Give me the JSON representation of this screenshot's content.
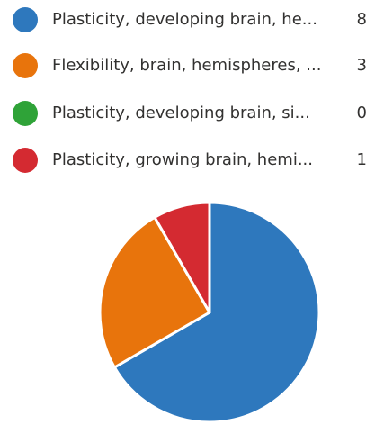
{
  "chart_data": {
    "type": "pie",
    "categories": [
      "Plasticity, developing brain, he...",
      "Flexibility, brain, hemispheres, ...",
      "Plasticity, developing brain, si...",
      "Plasticity, growing brain, hemi..."
    ],
    "values": [
      8,
      3,
      0,
      1
    ],
    "colors": [
      "#2e78bd",
      "#e8740c",
      "#2fa338",
      "#d42a31"
    ]
  }
}
